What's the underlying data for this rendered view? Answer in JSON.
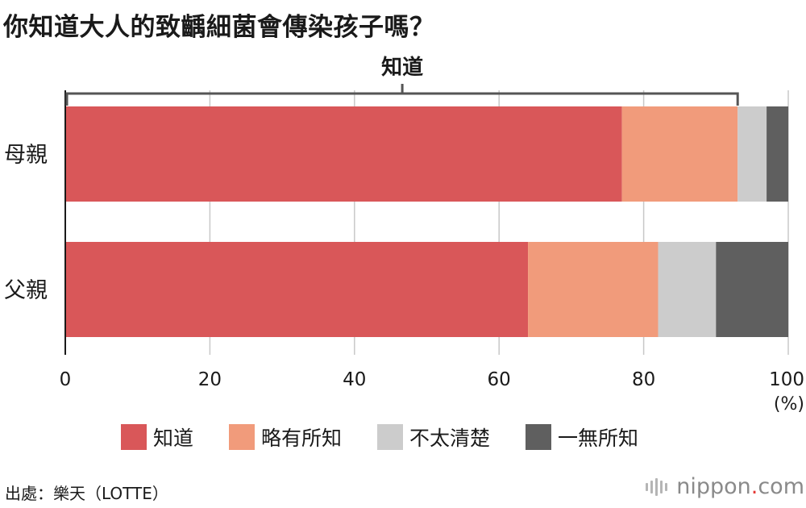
{
  "title": "你知道大人的致齲細菌會傳染孩子嗎？",
  "chart_data": {
    "type": "bar",
    "orientation": "horizontal",
    "stacked": true,
    "categories": [
      "母親",
      "父親"
    ],
    "series": [
      {
        "name": "知道",
        "color": "#d95759",
        "values": [
          77,
          64
        ]
      },
      {
        "name": "略有所知",
        "color": "#f19b7b",
        "values": [
          16,
          18
        ]
      },
      {
        "name": "不太清楚",
        "color": "#cccccc",
        "values": [
          4,
          8
        ]
      },
      {
        "name": "一無所知",
        "color": "#5f5f5f",
        "values": [
          3,
          10
        ]
      }
    ],
    "xlim": [
      0,
      100
    ],
    "xticks": [
      "0",
      "20",
      "40",
      "60",
      "80",
      "100"
    ],
    "xunit": "(%)",
    "grid": true,
    "legend_position": "bottom",
    "annotation": {
      "label": "知道",
      "range": [
        0,
        93
      ]
    }
  },
  "source": "出處：樂天（LOTTE）",
  "logo": {
    "name": "nippon",
    "dot": ".",
    "suffix": "com"
  }
}
